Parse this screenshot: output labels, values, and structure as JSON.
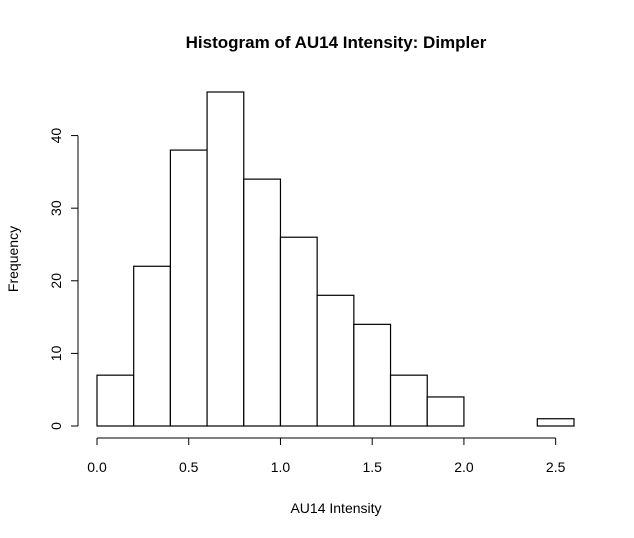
{
  "chart_data": {
    "type": "bar",
    "title": "Histogram of AU14 Intensity: Dimpler",
    "xlabel": "AU14 Intensity",
    "ylabel": "Frequency",
    "bin_edges": [
      0.0,
      0.2,
      0.4,
      0.6,
      0.8,
      1.0,
      1.2,
      1.4,
      1.6,
      1.8,
      2.0,
      2.2,
      2.4,
      2.6
    ],
    "values": [
      7,
      22,
      38,
      46,
      34,
      26,
      18,
      14,
      7,
      4,
      0,
      0,
      1
    ],
    "xlim": [
      0.0,
      2.6
    ],
    "ylim": [
      0,
      46
    ],
    "x_ticks": [
      "0.0",
      "0.5",
      "1.0",
      "1.5",
      "2.0",
      "2.5"
    ],
    "y_ticks": [
      "0",
      "10",
      "20",
      "30",
      "40"
    ],
    "grid": false,
    "bar_fill": "#ffffff",
    "bar_stroke": "#000000"
  }
}
